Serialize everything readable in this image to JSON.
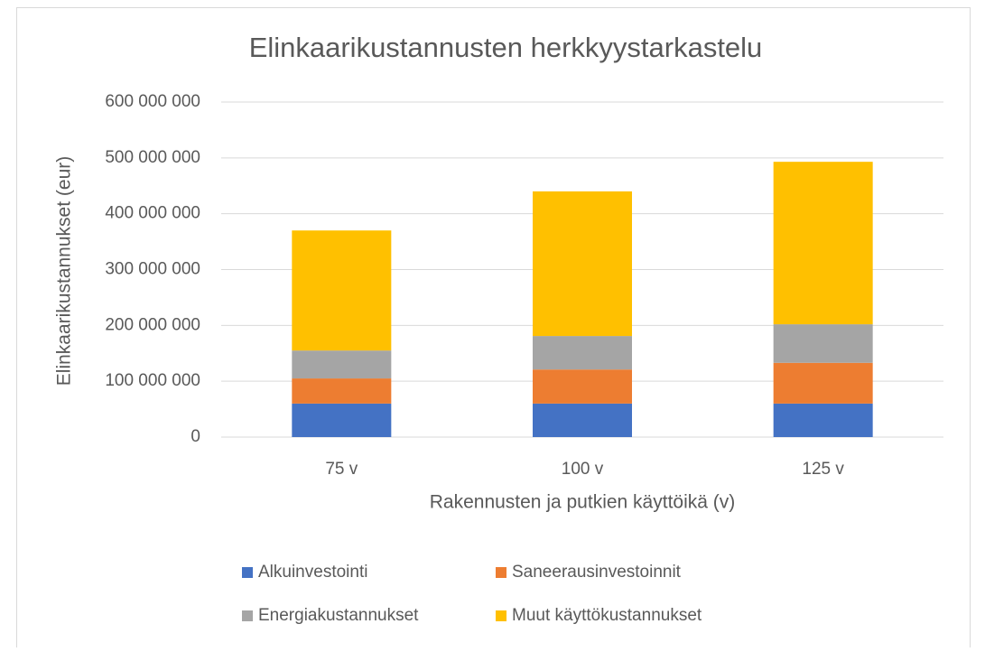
{
  "chart_data": {
    "type": "bar",
    "stacked": true,
    "title": "Elinkaarikustannusten herkkyystarkastelu",
    "x_label": "Rakennusten ja putkien käyttöikä (v)",
    "y_label": "Elinkaarikustannukset (eur)",
    "categories": [
      "75 v",
      "100 v",
      "125 v"
    ],
    "series": [
      {
        "name": "Alkuinvestointi",
        "color": "#4472c4",
        "values": [
          60000000,
          60000000,
          60000000
        ]
      },
      {
        "name": "Saneerausinvestoinnit",
        "color": "#ed7d31",
        "values": [
          45000000,
          61000000,
          73000000
        ]
      },
      {
        "name": "Energiakustannukset",
        "color": "#a5a5a5",
        "values": [
          50000000,
          60000000,
          69000000
        ]
      },
      {
        "name": "Muut käyttökustannukset",
        "color": "#ffc000",
        "values": [
          215000000,
          259000000,
          291000000
        ]
      }
    ],
    "ylim": [
      0,
      600000000
    ],
    "yticks": [
      0,
      {
        "value": 100000000,
        "label": "100 000 000"
      },
      {
        "value": 200000000,
        "label": "200 000 000"
      },
      {
        "value": 300000000,
        "label": "300 000 000"
      },
      {
        "value": 400000000,
        "label": "400 000 000"
      },
      {
        "value": 500000000,
        "label": "500 000 000"
      },
      {
        "value": 600000000,
        "label": "600 000 000"
      }
    ],
    "grid": true,
    "legend": "bottom"
  }
}
